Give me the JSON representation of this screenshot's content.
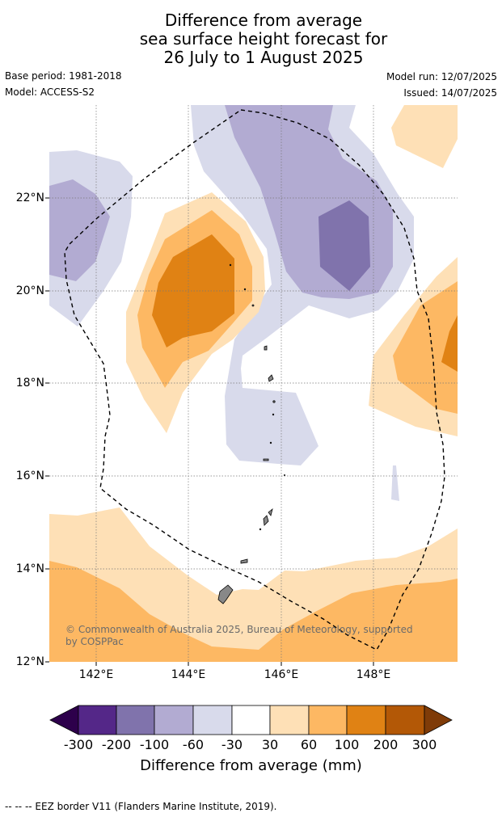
{
  "title": {
    "line1": "Difference from average",
    "line2": "sea surface height forecast for",
    "line3": "26 July to 1 August 2025"
  },
  "meta": {
    "base_period": "Base period: 1981-2018",
    "model": "Model: ACCESS-S2",
    "model_run": "Model run: 12/07/2025",
    "issued": "Issued: 14/07/2025"
  },
  "axes": {
    "lon_ticks": [
      "142°E",
      "144°E",
      "146°E",
      "148°E"
    ],
    "lat_ticks": [
      "22°N",
      "20°N",
      "18°N",
      "16°N",
      "14°N",
      "12°N"
    ],
    "lon_range": [
      141,
      149.8
    ],
    "lat_range": [
      12,
      24
    ]
  },
  "copyright": "© Commonwealth of Australia 2025, Bureau of Meteorology, supported by COSPPac",
  "colorbar": {
    "title": "Difference from average (mm)",
    "labels": [
      "-300",
      "-200",
      "-100",
      "-60",
      "-30",
      "30",
      "60",
      "100",
      "200",
      "300"
    ],
    "colors": [
      "#2d004b",
      "#542788",
      "#8073ac",
      "#b2abd2",
      "#d8daeb",
      "#ffffff",
      "#fee0b6",
      "#fdb863",
      "#e08214",
      "#b35806",
      "#7f3b08"
    ]
  },
  "footer": "--  --  -- EEZ border V11 (Flanders Marine Institute, 2019)."
}
